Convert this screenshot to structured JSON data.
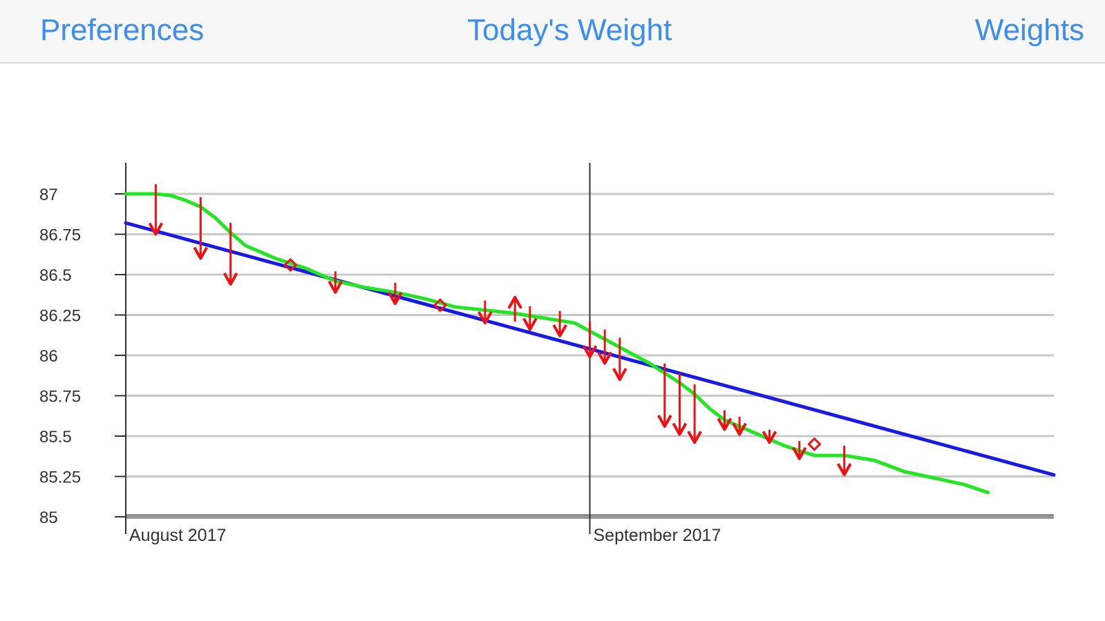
{
  "navbar": {
    "left_label": "Preferences",
    "title": "Today's Weight",
    "right_label": "Weights"
  },
  "colors": {
    "link": "#3b8ef0",
    "trend": "#1a1ae6",
    "smoothed": "#22e622",
    "marker": "#ee1111",
    "grid": "#c8c8c8"
  },
  "chart_data": {
    "type": "line",
    "title": "",
    "xlabel": "",
    "ylabel": "",
    "x_unit": "days since Aug 1 2017",
    "xlim": [
      0,
      31
    ],
    "ylim": [
      85,
      87
    ],
    "y_ticks": [
      "87",
      "86.75",
      "86.5",
      "86.25",
      "86",
      "85.75",
      "85.5",
      "85.25",
      "85"
    ],
    "y_tick_values": [
      87,
      86.75,
      86.5,
      86.25,
      86,
      85.75,
      85.5,
      85.25,
      85
    ],
    "x_labels": [
      {
        "x": 0,
        "label": "August 2017"
      },
      {
        "x": 15.5,
        "label": "September 2017"
      }
    ],
    "grid": true,
    "legend": "none",
    "series": [
      {
        "kind": "trend_line",
        "x": [
          0,
          31
        ],
        "y": [
          86.82,
          85.26
        ]
      },
      {
        "kind": "smoothed_line",
        "x": [
          0,
          0.5,
          1,
          1.5,
          2,
          2.5,
          3,
          3.5,
          4,
          5,
          6,
          7,
          8,
          9,
          10,
          11,
          12,
          13,
          14,
          15,
          15.5,
          16,
          16.5,
          17,
          17.5,
          18,
          18.5,
          19,
          19.5,
          20,
          20.5,
          21,
          21.5,
          22,
          22.5,
          23,
          24,
          25,
          26,
          27,
          28,
          28.8
        ],
        "y": [
          87.0,
          87.0,
          87.0,
          86.99,
          86.96,
          86.92,
          86.85,
          86.76,
          86.68,
          86.6,
          86.54,
          86.46,
          86.42,
          86.39,
          86.35,
          86.3,
          86.28,
          86.26,
          86.23,
          86.2,
          86.15,
          86.1,
          86.05,
          86.0,
          85.95,
          85.89,
          85.83,
          85.76,
          85.67,
          85.6,
          85.56,
          85.52,
          85.48,
          85.44,
          85.41,
          85.38,
          85.38,
          85.35,
          85.28,
          85.24,
          85.2,
          85.15
        ]
      }
    ],
    "weighings": [
      {
        "x": 1.0,
        "y": 86.75,
        "type": "down"
      },
      {
        "x": 2.5,
        "y": 86.6,
        "type": "down"
      },
      {
        "x": 3.5,
        "y": 86.44,
        "type": "down"
      },
      {
        "x": 5.5,
        "y": 86.56,
        "type": "diamond"
      },
      {
        "x": 7.0,
        "y": 86.39,
        "type": "down"
      },
      {
        "x": 9.0,
        "y": 86.32,
        "type": "down"
      },
      {
        "x": 10.5,
        "y": 86.31,
        "type": "diamond"
      },
      {
        "x": 12.0,
        "y": 86.2,
        "type": "down"
      },
      {
        "x": 13.0,
        "y": 86.36,
        "type": "up"
      },
      {
        "x": 13.5,
        "y": 86.16,
        "type": "down"
      },
      {
        "x": 14.5,
        "y": 86.12,
        "type": "down"
      },
      {
        "x": 15.5,
        "y": 85.99,
        "type": "down"
      },
      {
        "x": 16.0,
        "y": 85.95,
        "type": "down"
      },
      {
        "x": 16.5,
        "y": 85.85,
        "type": "down"
      },
      {
        "x": 18.0,
        "y": 85.56,
        "type": "down"
      },
      {
        "x": 18.5,
        "y": 85.51,
        "type": "down"
      },
      {
        "x": 19.0,
        "y": 85.46,
        "type": "down"
      },
      {
        "x": 20.0,
        "y": 85.54,
        "type": "down"
      },
      {
        "x": 20.5,
        "y": 85.51,
        "type": "down"
      },
      {
        "x": 21.5,
        "y": 85.46,
        "type": "down"
      },
      {
        "x": 22.5,
        "y": 85.36,
        "type": "down"
      },
      {
        "x": 23.0,
        "y": 85.45,
        "type": "diamond"
      },
      {
        "x": 24.0,
        "y": 85.26,
        "type": "down"
      }
    ]
  }
}
